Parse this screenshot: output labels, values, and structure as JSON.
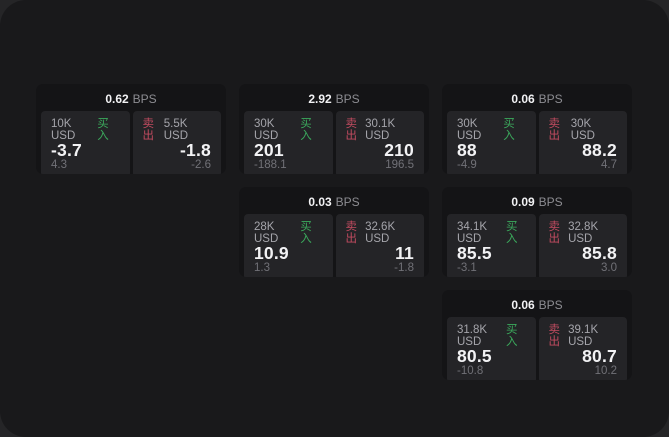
{
  "page": {
    "outer_bg": "#252527",
    "window_bg": "#19191b",
    "card_bg": "#141416",
    "panel_bg": "#242427"
  },
  "colors": {
    "buy_green": "#3ba95c",
    "sell_red": "#c24b60",
    "value_white": "#f2f2f4",
    "label_gray": "#a5a5ab",
    "delta_gray": "#717177"
  },
  "labels": {
    "bps_unit": "BPS",
    "buy": "买入",
    "sell": "卖出"
  },
  "cards": [
    {
      "row": 1,
      "col": 1,
      "bps": "0.62",
      "buy": {
        "amount": "10K USD",
        "value": "-3.7",
        "delta": "4.3"
      },
      "sell": {
        "amount": "5.5K USD",
        "value": "-1.8",
        "delta": "-2.6"
      }
    },
    {
      "row": 1,
      "col": 2,
      "bps": "2.92",
      "buy": {
        "amount": "30K USD",
        "value": "201",
        "delta": "-188.1"
      },
      "sell": {
        "amount": "30.1K USD",
        "value": "210",
        "delta": "196.5"
      }
    },
    {
      "row": 1,
      "col": 3,
      "bps": "0.06",
      "buy": {
        "amount": "30K USD",
        "value": "88",
        "delta": "-4.9"
      },
      "sell": {
        "amount": "30K USD",
        "value": "88.2",
        "delta": "4.7"
      }
    },
    {
      "row": 2,
      "col": 2,
      "bps": "0.03",
      "buy": {
        "amount": "28K USD",
        "value": "10.9",
        "delta": "1.3"
      },
      "sell": {
        "amount": "32.6K USD",
        "value": "11",
        "delta": "-1.8"
      }
    },
    {
      "row": 2,
      "col": 3,
      "bps": "0.09",
      "buy": {
        "amount": "34.1K USD",
        "value": "85.5",
        "delta": "-3.1"
      },
      "sell": {
        "amount": "32.8K USD",
        "value": "85.8",
        "delta": "3.0"
      }
    },
    {
      "row": 3,
      "col": 3,
      "bps": "0.06",
      "buy": {
        "amount": "31.8K USD",
        "value": "80.5",
        "delta": "-10.8"
      },
      "sell": {
        "amount": "39.1K USD",
        "value": "80.7",
        "delta": "10.2"
      }
    }
  ]
}
